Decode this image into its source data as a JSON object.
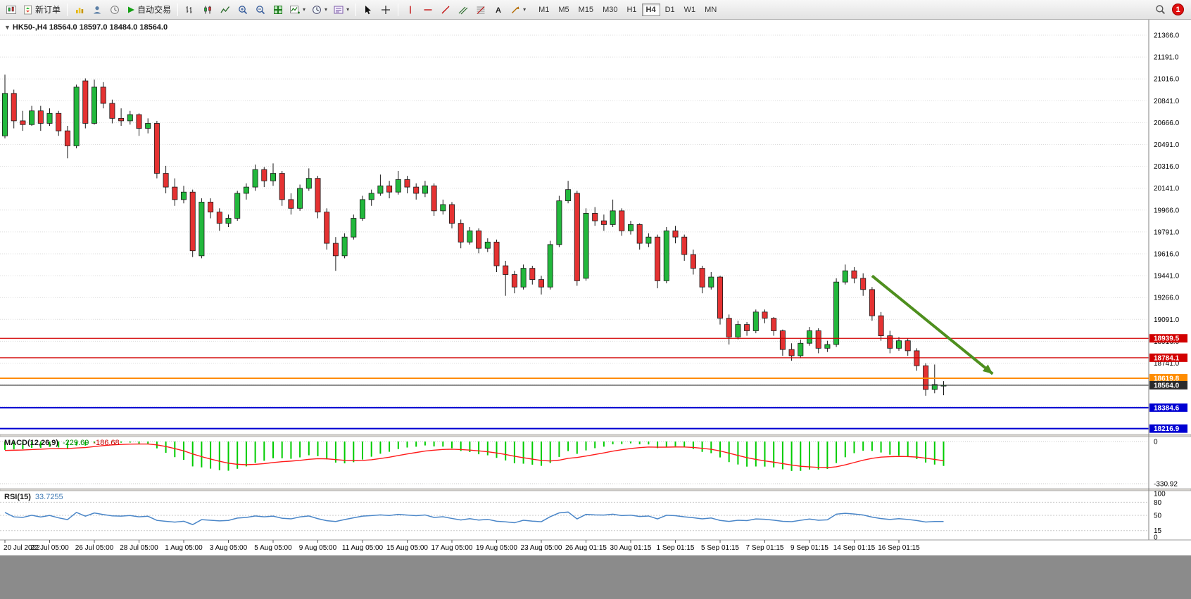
{
  "toolbar": {
    "new_order_label": "新订单",
    "auto_trading_label": "自动交易",
    "timeframes": [
      "M1",
      "M5",
      "M15",
      "M30",
      "H1",
      "H4",
      "D1",
      "W1",
      "MN"
    ],
    "active_timeframe": "H4",
    "notification_count": "1"
  },
  "chart": {
    "symbol_info": "HK50-,H4  18564.0 18597.0 18484.0 18564.0",
    "macd_title": "MACD(12,26,9)",
    "macd_value_main": "-229.69",
    "macd_value_signal": "-186.68",
    "rsi_title": "RSI(15)",
    "rsi_value": "33.7255"
  },
  "chart_data": {
    "type": "candlestick",
    "symbol": "HK50-",
    "timeframe": "H4",
    "last_quote": {
      "open": 18564.0,
      "high": 18597.0,
      "low": 18484.0,
      "close": 18564.0
    },
    "colors": {
      "up": "#22b83c",
      "down": "#e53232",
      "outline": "#1a1a1a",
      "macd_hist": "#00cc00",
      "macd_signal": "#ff1a1a",
      "rsi_line": "#4a86c8",
      "grid": "#dcdcdc",
      "arrow": "#4e8f1e"
    },
    "price_axis": {
      "top_value": 21366.0,
      "step": 175.0,
      "labels": [
        "21366.0",
        "21191.0",
        "21016.0",
        "20841.0",
        "20666.0",
        "20491.0",
        "20316.0",
        "20141.0",
        "19966.0",
        "19791.0",
        "19616.0",
        "19441.0",
        "19266.0",
        "19091.0",
        "18916.0",
        "18741.0"
      ]
    },
    "hlines": [
      {
        "price": 18939.5,
        "color": "#d20000",
        "badge": "18939.5",
        "width": 1.2
      },
      {
        "price": 18784.1,
        "color": "#d20000",
        "badge": "18784.1",
        "width": 1.2
      },
      {
        "price": 18619.8,
        "color": "#ff8c00",
        "badge": "18619.8",
        "width": 2
      },
      {
        "price": 18564.0,
        "color": "#2b2b2b",
        "badge": "18564.0",
        "width": 1.2
      },
      {
        "price": 18384.6,
        "color": "#0000d2",
        "badge": "18384.6",
        "width": 2
      },
      {
        "price": 18216.9,
        "color": "#0000d2",
        "badge": "18216.9",
        "width": 2
      }
    ],
    "arrow": {
      "from_index": 97,
      "from_price": 19440,
      "to_index": 110.5,
      "to_price": 18655
    },
    "macd": {
      "params": [
        12,
        26,
        9
      ],
      "axis_labels": [
        "0",
        "-330.92"
      ],
      "scale_min": -330.92
    },
    "rsi": {
      "period": 15,
      "value": 33.7255,
      "levels": [
        80,
        50,
        15
      ],
      "axis_labels": [
        100,
        80,
        50,
        15,
        0
      ]
    },
    "time_label_step": 5,
    "time_labels": [
      "20 Jul 2022",
      "22 Jul 05:00",
      "26 Jul 05:00",
      "28 Jul 05:00",
      "1 Aug 05:00",
      "3 Aug 05:00",
      "5 Aug 05:00",
      "9 Aug 05:00",
      "11 Aug 05:00",
      "15 Aug 05:00",
      "17 Aug 05:00",
      "19 Aug 05:00",
      "23 Aug 05:00",
      "26 Aug 01:15",
      "30 Aug 01:15",
      "1 Sep 01:15",
      "5 Sep 01:15",
      "7 Sep 01:15",
      "9 Sep 01:15",
      "14 Sep 01:15",
      "16 Sep 01:15"
    ],
    "pre_closes": [
      20900,
      20950,
      21000,
      21050,
      21100,
      21050,
      21000,
      20950,
      20900,
      20850,
      20900,
      20950,
      20850,
      20800,
      20750,
      20800,
      20700,
      20650,
      20700,
      20600,
      20650,
      20700,
      20600,
      20580,
      20560,
      20550
    ],
    "ohlc": [
      [
        20560,
        21050,
        20540,
        20900
      ],
      [
        20900,
        20930,
        20620,
        20680
      ],
      [
        20680,
        20760,
        20600,
        20650
      ],
      [
        20650,
        20800,
        20640,
        20760
      ],
      [
        20760,
        20800,
        20600,
        20660
      ],
      [
        20660,
        20780,
        20640,
        20740
      ],
      [
        20740,
        20760,
        20560,
        20600
      ],
      [
        20600,
        20640,
        20380,
        20480
      ],
      [
        20480,
        20970,
        20460,
        20950
      ],
      [
        21000,
        21020,
        20620,
        20660
      ],
      [
        20660,
        21010,
        20650,
        20950
      ],
      [
        20950,
        20990,
        20780,
        20820
      ],
      [
        20820,
        20850,
        20660,
        20700
      ],
      [
        20700,
        20780,
        20640,
        20680
      ],
      [
        20680,
        20760,
        20650,
        20730
      ],
      [
        20730,
        20740,
        20560,
        20620
      ],
      [
        20620,
        20700,
        20580,
        20660
      ],
      [
        20660,
        20680,
        20220,
        20260
      ],
      [
        20260,
        20320,
        20100,
        20150
      ],
      [
        20150,
        20220,
        20000,
        20050
      ],
      [
        20050,
        20160,
        20020,
        20110
      ],
      [
        20110,
        20130,
        19590,
        19640
      ],
      [
        19600,
        20060,
        19580,
        20030
      ],
      [
        20030,
        20060,
        19900,
        19950
      ],
      [
        19950,
        19980,
        19800,
        19860
      ],
      [
        19860,
        19930,
        19830,
        19900
      ],
      [
        19900,
        20120,
        19880,
        20100
      ],
      [
        20100,
        20180,
        20050,
        20150
      ],
      [
        20150,
        20330,
        20120,
        20290
      ],
      [
        20290,
        20310,
        20150,
        20200
      ],
      [
        20200,
        20340,
        20160,
        20260
      ],
      [
        20260,
        20280,
        20000,
        20050
      ],
      [
        20050,
        20100,
        19930,
        19980
      ],
      [
        19980,
        20170,
        19960,
        20140
      ],
      [
        20140,
        20300,
        20120,
        20220
      ],
      [
        20220,
        20240,
        19900,
        19950
      ],
      [
        19950,
        19980,
        19650,
        19700
      ],
      [
        19700,
        19750,
        19480,
        19600
      ],
      [
        19600,
        19780,
        19580,
        19750
      ],
      [
        19750,
        19930,
        19730,
        19900
      ],
      [
        19900,
        20080,
        19880,
        20050
      ],
      [
        20050,
        20130,
        20000,
        20100
      ],
      [
        20100,
        20250,
        20080,
        20160
      ],
      [
        20160,
        20200,
        20060,
        20110
      ],
      [
        20110,
        20280,
        20090,
        20210
      ],
      [
        20210,
        20240,
        20100,
        20150
      ],
      [
        20150,
        20180,
        20050,
        20100
      ],
      [
        20100,
        20200,
        20070,
        20160
      ],
      [
        20160,
        20180,
        19920,
        19960
      ],
      [
        19960,
        20050,
        19930,
        20010
      ],
      [
        20010,
        20030,
        19820,
        19860
      ],
      [
        19860,
        19890,
        19660,
        19710
      ],
      [
        19710,
        19830,
        19690,
        19800
      ],
      [
        19800,
        19820,
        19620,
        19660
      ],
      [
        19660,
        19740,
        19630,
        19710
      ],
      [
        19710,
        19730,
        19470,
        19520
      ],
      [
        19520,
        19560,
        19280,
        19450
      ],
      [
        19450,
        19480,
        19300,
        19350
      ],
      [
        19350,
        19530,
        19330,
        19500
      ],
      [
        19500,
        19520,
        19370,
        19410
      ],
      [
        19410,
        19440,
        19290,
        19350
      ],
      [
        19350,
        19720,
        19330,
        19690
      ],
      [
        19690,
        20080,
        19670,
        20040
      ],
      [
        20040,
        20200,
        20020,
        20130
      ],
      [
        20100,
        20120,
        19360,
        19400
      ],
      [
        19420,
        19980,
        19400,
        19940
      ],
      [
        19940,
        19990,
        19840,
        19880
      ],
      [
        19880,
        19930,
        19800,
        19850
      ],
      [
        19850,
        20050,
        19830,
        19960
      ],
      [
        19960,
        19980,
        19760,
        19800
      ],
      [
        19800,
        19880,
        19770,
        19850
      ],
      [
        19850,
        19860,
        19650,
        19700
      ],
      [
        19700,
        19780,
        19670,
        19750
      ],
      [
        19750,
        19770,
        19340,
        19400
      ],
      [
        19400,
        19830,
        19380,
        19800
      ],
      [
        19800,
        19840,
        19700,
        19750
      ],
      [
        19750,
        19770,
        19560,
        19610
      ],
      [
        19610,
        19650,
        19450,
        19500
      ],
      [
        19500,
        19520,
        19300,
        19350
      ],
      [
        19350,
        19470,
        19330,
        19430
      ],
      [
        19430,
        19440,
        19050,
        19100
      ],
      [
        19100,
        19130,
        18890,
        18950
      ],
      [
        18950,
        19080,
        18930,
        19050
      ],
      [
        19050,
        19070,
        18960,
        19000
      ],
      [
        19000,
        19170,
        18980,
        19150
      ],
      [
        19150,
        19170,
        19060,
        19100
      ],
      [
        19100,
        19110,
        18960,
        19000
      ],
      [
        19000,
        19010,
        18800,
        18850
      ],
      [
        18850,
        18900,
        18760,
        18800
      ],
      [
        18800,
        18930,
        18780,
        18900
      ],
      [
        18900,
        19030,
        18880,
        19000
      ],
      [
        19000,
        19020,
        18820,
        18860
      ],
      [
        18860,
        18920,
        18830,
        18890
      ],
      [
        18890,
        19420,
        18870,
        19390
      ],
      [
        19390,
        19530,
        19370,
        19480
      ],
      [
        19480,
        19510,
        19380,
        19420
      ],
      [
        19420,
        19460,
        19280,
        19330
      ],
      [
        19330,
        19350,
        19080,
        19120
      ],
      [
        19120,
        19150,
        18920,
        18960
      ],
      [
        18960,
        19000,
        18820,
        18860
      ],
      [
        18860,
        18950,
        18840,
        18920
      ],
      [
        18920,
        18940,
        18800,
        18840
      ],
      [
        18840,
        18860,
        18680,
        18720
      ],
      [
        18720,
        18740,
        18480,
        18530
      ],
      [
        18530,
        18730,
        18500,
        18570
      ],
      [
        18564,
        18597,
        18484,
        18564
      ]
    ]
  }
}
